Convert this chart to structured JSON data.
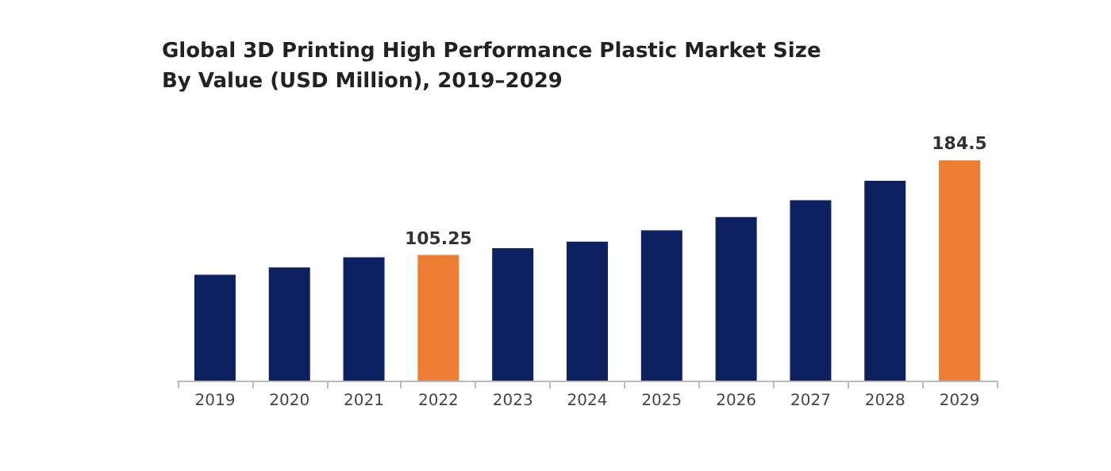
{
  "chart_data": {
    "type": "bar",
    "title": "Global 3D Printing High Performance Plastic Market Size\nBy Value (USD Million), 2019–2029",
    "categories": [
      "2019",
      "2020",
      "2021",
      "2022",
      "2023",
      "2024",
      "2025",
      "2026",
      "2027",
      "2028",
      "2029"
    ],
    "values": [
      88.7,
      94.9,
      103.4,
      105.25,
      110.9,
      116.5,
      125.9,
      137.1,
      151.2,
      167.4,
      184.5
    ],
    "colors": [
      "#0d2160",
      "#0d2160",
      "#0d2160",
      "#ed7d31",
      "#0d2160",
      "#0d2160",
      "#0d2160",
      "#0d2160",
      "#0d2160",
      "#0d2160",
      "#ed7d31"
    ],
    "value_labels": [
      null,
      null,
      null,
      "105.25",
      null,
      null,
      null,
      null,
      null,
      null,
      "184.5"
    ],
    "tick_labels": "x"
  }
}
